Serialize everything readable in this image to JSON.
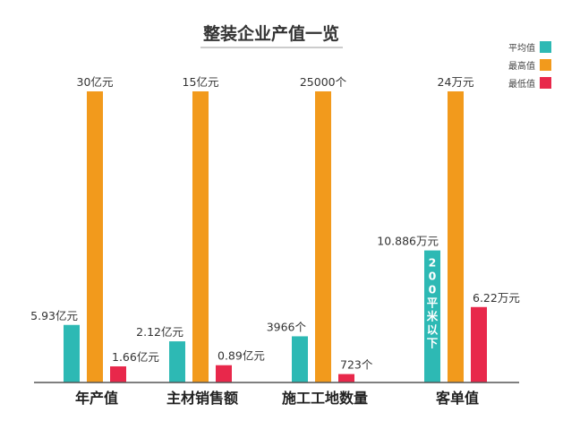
{
  "chart_data": {
    "type": "bar",
    "title": "整装企业产值一览",
    "legend_position": "top-right",
    "grid": false,
    "series": [
      {
        "name": "平均值",
        "color": "#2db9b4"
      },
      {
        "name": "最高值",
        "color": "#f29a1c"
      },
      {
        "name": "最低值",
        "color": "#e8284b"
      }
    ],
    "groups": [
      {
        "category": "年产值",
        "bars": [
          {
            "value": 5.93,
            "unit": "亿元",
            "label": "5.93亿元"
          },
          {
            "value": 30,
            "unit": "亿元",
            "label": "30亿元"
          },
          {
            "value": 1.66,
            "unit": "亿元",
            "label": "1.66亿元"
          }
        ]
      },
      {
        "category": "主材销售额",
        "bars": [
          {
            "value": 2.12,
            "unit": "亿元",
            "label": "2.12亿元"
          },
          {
            "value": 15,
            "unit": "亿元",
            "label": "15亿元"
          },
          {
            "value": 0.89,
            "unit": "亿元",
            "label": "0.89亿元"
          }
        ]
      },
      {
        "category": "施工工地数量",
        "bars": [
          {
            "value": 3966,
            "unit": "个",
            "label": "3966个"
          },
          {
            "value": 25000,
            "unit": "个",
            "label": "25000个"
          },
          {
            "value": 723,
            "unit": "个",
            "label": "723个"
          }
        ]
      },
      {
        "category": "客单值",
        "bars": [
          {
            "value": 10.886,
            "unit": "万元",
            "label": "10.886万元",
            "note": "200平米以下"
          },
          {
            "value": 24,
            "unit": "万元",
            "label": "24万元"
          },
          {
            "value": 6.22,
            "unit": "万元",
            "label": "6.22万元"
          }
        ]
      }
    ]
  }
}
